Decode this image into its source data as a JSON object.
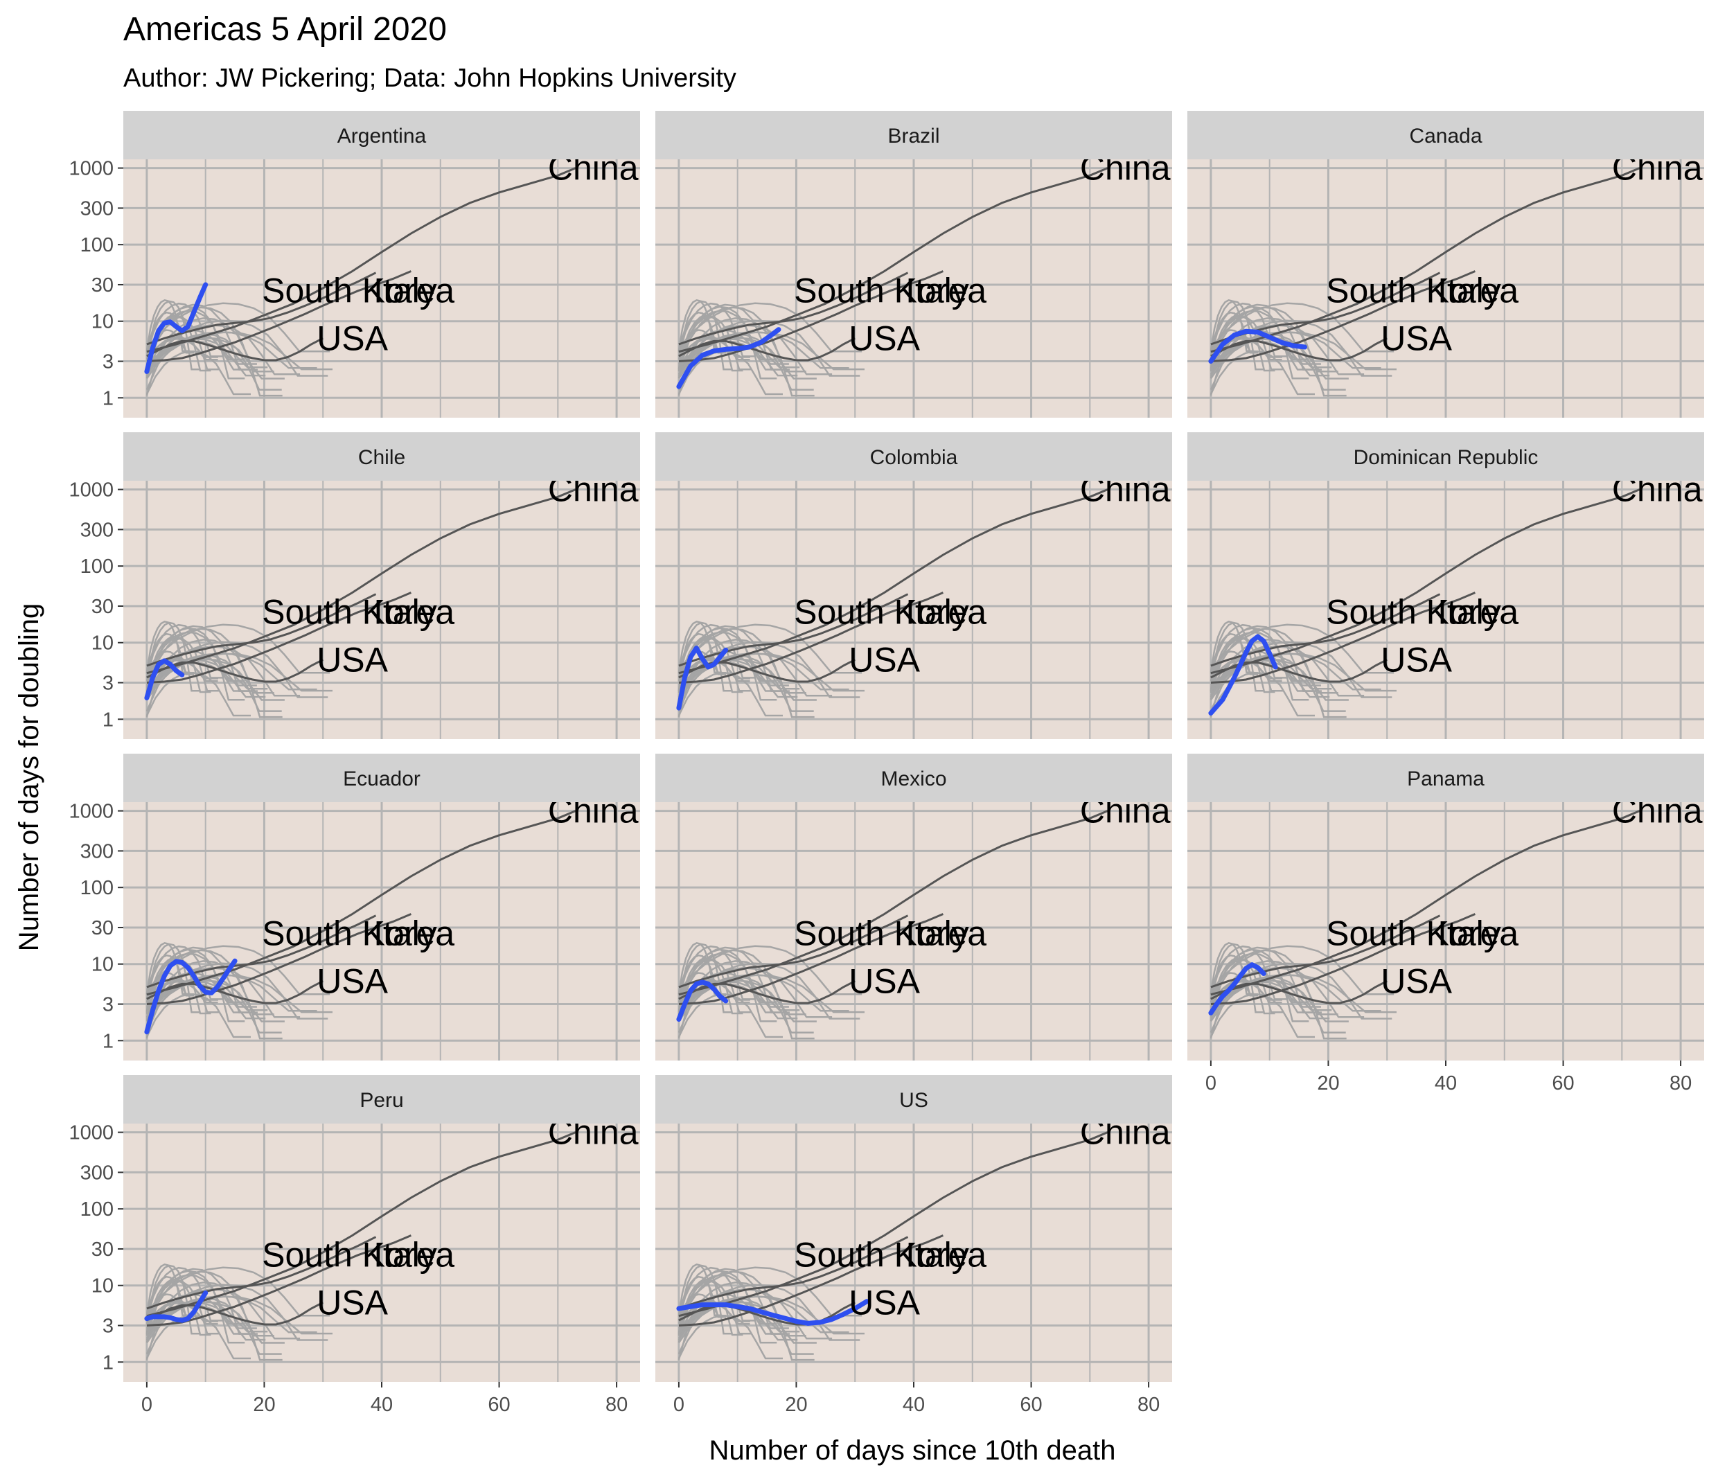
{
  "chart_data": {
    "type": "line",
    "title": "Americas 5 April 2020",
    "subtitle": "Author: JW Pickering; Data: John Hopkins University",
    "xlabel": "Number of days since 10th death",
    "ylabel": "Number of days for doubling",
    "x_ticks": [
      0,
      20,
      40,
      60,
      80
    ],
    "y_ticks": [
      1,
      3,
      10,
      30,
      100,
      300,
      1000
    ],
    "y_scale": "log",
    "xlim": [
      -4,
      84
    ],
    "ylim": [
      0.55,
      1300
    ],
    "grid": true,
    "facets": [
      "Argentina",
      "Brazil",
      "Canada",
      "Chile",
      "Colombia",
      "Dominican Republic",
      "Ecuador",
      "Mexico",
      "Panama",
      "Peru",
      "US"
    ],
    "annotations": [
      {
        "text": "China",
        "x": 76,
        "y": 1000
      },
      {
        "text": "South Korea",
        "x": 36,
        "y": 25
      },
      {
        "text": "Italy",
        "x": 44,
        "y": 25
      },
      {
        "text": "USA",
        "x": 35,
        "y": 6
      }
    ],
    "reference_series": [
      {
        "name": "China",
        "x": [
          0,
          5,
          10,
          15,
          20,
          25,
          30,
          35,
          40,
          45,
          50,
          55,
          60,
          65,
          70,
          73
        ],
        "y": [
          4,
          5,
          6.5,
          8.5,
          12,
          17,
          27,
          45,
          80,
          140,
          230,
          350,
          480,
          620,
          800,
          1000
        ]
      },
      {
        "name": "South Korea",
        "x": [
          0,
          3,
          6,
          9,
          12,
          15,
          18,
          21,
          24,
          27,
          30,
          33,
          36,
          39,
          42,
          45
        ],
        "y": [
          3,
          3.1,
          3.3,
          3.8,
          4.5,
          5.3,
          6.5,
          8,
          10,
          12.5,
          16,
          20,
          25,
          30,
          36,
          45
        ]
      },
      {
        "name": "Italy",
        "x": [
          0,
          3,
          6,
          9,
          12,
          15,
          18,
          21,
          24,
          27,
          30,
          33,
          36,
          39
        ],
        "y": [
          5,
          6,
          7,
          8,
          9,
          9.5,
          10,
          11,
          13,
          16,
          20,
          26,
          33,
          43
        ]
      },
      {
        "name": "USA",
        "x": [
          0,
          2,
          4,
          6,
          8,
          10,
          12,
          14,
          16,
          18,
          20,
          22,
          24,
          26,
          28,
          30
        ],
        "y": [
          3.5,
          4.2,
          5,
          5.5,
          5.5,
          5,
          4.5,
          4,
          3.6,
          3.3,
          3.1,
          3.1,
          3.4,
          4,
          5,
          6
        ]
      }
    ],
    "series": [
      {
        "name": "Argentina",
        "x": [
          0,
          1,
          2,
          3,
          4,
          5,
          6,
          7,
          8,
          9,
          10
        ],
        "y": [
          2.2,
          4.5,
          7.5,
          9.5,
          9.8,
          8.5,
          7.5,
          8.5,
          13,
          20,
          30
        ]
      },
      {
        "name": "Brazil",
        "x": [
          0,
          2,
          4,
          6,
          8,
          10,
          12,
          14,
          16,
          17
        ],
        "y": [
          1.4,
          2.6,
          3.6,
          4.1,
          4.3,
          4.4,
          4.6,
          5.3,
          6.8,
          7.8
        ]
      },
      {
        "name": "Canada",
        "x": [
          0,
          2,
          4,
          6,
          8,
          10,
          12,
          14,
          16
        ],
        "y": [
          3,
          5,
          6.6,
          7.4,
          7.2,
          6.2,
          5.3,
          4.8,
          4.6
        ]
      },
      {
        "name": "Chile",
        "x": [
          0,
          1,
          2,
          3,
          4,
          5,
          6
        ],
        "y": [
          1.9,
          3.5,
          5.2,
          5.8,
          5.2,
          4.3,
          3.8
        ]
      },
      {
        "name": "Colombia",
        "x": [
          0,
          1,
          2,
          3,
          4,
          5,
          6,
          7,
          8
        ],
        "y": [
          1.4,
          3.5,
          6.5,
          8.5,
          6.2,
          4.8,
          5.2,
          6.5,
          8
        ]
      },
      {
        "name": "Dominican Republic",
        "x": [
          0,
          2,
          4,
          6,
          7,
          8,
          9,
          10,
          11
        ],
        "y": [
          1.2,
          1.8,
          3.5,
          7.5,
          10.5,
          12,
          10.5,
          7.2,
          4.8
        ]
      },
      {
        "name": "Ecuador",
        "x": [
          0,
          1,
          2,
          3,
          4,
          5,
          6,
          7,
          8,
          9,
          10,
          11,
          12,
          13,
          14,
          15
        ],
        "y": [
          1.3,
          2.5,
          4.5,
          7,
          9.5,
          10.8,
          10.5,
          9,
          7,
          5.2,
          4.3,
          4.2,
          5,
          6.5,
          8.5,
          11
        ]
      },
      {
        "name": "Mexico",
        "x": [
          0,
          1,
          2,
          3,
          4,
          5,
          6,
          7,
          8
        ],
        "y": [
          1.9,
          3,
          4.5,
          5.5,
          5.8,
          5.5,
          4.7,
          3.8,
          3.3
        ]
      },
      {
        "name": "Panama",
        "x": [
          0,
          1,
          2,
          3,
          4,
          5,
          6,
          7,
          8,
          9
        ],
        "y": [
          2.3,
          3,
          3.8,
          4.5,
          5.5,
          7,
          8.8,
          9.8,
          9,
          7.5
        ]
      },
      {
        "name": "Peru",
        "x": [
          0,
          1,
          2,
          3,
          4,
          5,
          6,
          7,
          8,
          9,
          10
        ],
        "y": [
          3.7,
          3.9,
          3.9,
          3.9,
          3.8,
          3.6,
          3.5,
          3.7,
          4.5,
          6,
          8
        ]
      },
      {
        "name": "US",
        "x": [
          0,
          4,
          8,
          12,
          16,
          20,
          22,
          24,
          26,
          28,
          30,
          32
        ],
        "y": [
          5,
          5.6,
          5.6,
          5,
          4.1,
          3.4,
          3.2,
          3.3,
          3.6,
          4.2,
          5,
          6.2
        ]
      }
    ],
    "colors": {
      "panel_bg": "#e8ddd6",
      "strip_bg": "#d2d2d2",
      "grid": "#b4b4b4",
      "highlight": "#2e4ff0",
      "reference": "#555555",
      "background_lines": "#a5a5a5"
    }
  }
}
